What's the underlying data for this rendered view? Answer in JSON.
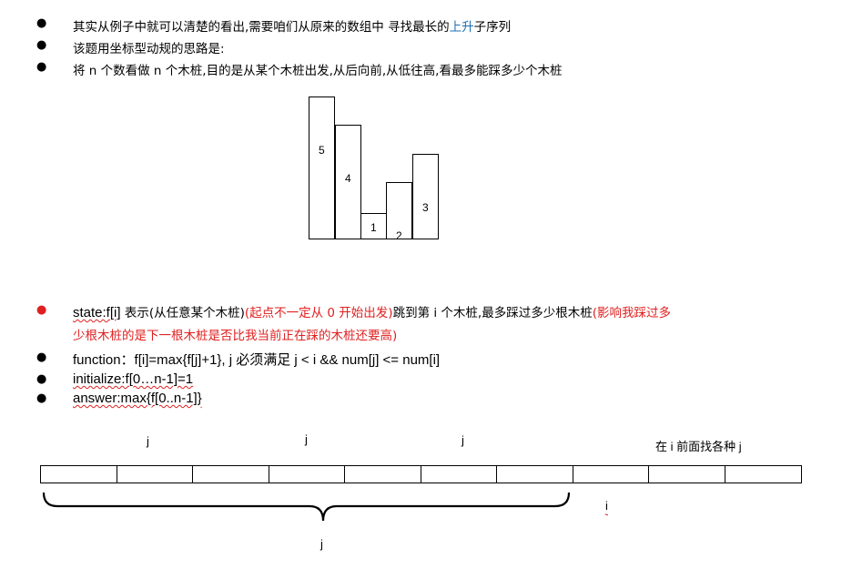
{
  "bullets_top": [
    {
      "pre": "其实从例子中就可以清楚的看出,需要咱们从原来的数组中 寻找最长的",
      "highlight": "上升",
      "post": "子序列"
    },
    {
      "text": "该题用坐标型动规的思路是:"
    },
    {
      "text": "将 n 个数看做 n 个木桩,目的是从某个木桩出发,从后向前,从低往高,看最多能踩多少个木桩"
    }
  ],
  "bullet_symbol": "●",
  "bar_chart": {
    "labels": [
      "5",
      "4",
      "1",
      "2",
      "3"
    ],
    "values": [
      5,
      4,
      1,
      2,
      3
    ]
  },
  "state": {
    "label": "state:f[i]",
    "desc1": " 表示(从任意某个木桩)",
    "red1": "(起点不一定从 0 开始出发)",
    "desc2": "跳到第 i 个木桩,最多踩过多少根木桩",
    "red2": "(影响我踩过多",
    "red3": "少根木桩的是下一根木桩是否比我当前正在踩的木桩还要高)"
  },
  "function_line": "function：f[i]=max{f[j]+1},   j 必须满足 j < i  && num[j] <= num[i]",
  "initialize_line": "initialize:f[0…n-1]=1",
  "answer_line": "answer:max{f[0..n-1]}",
  "bottom": {
    "j_labels": [
      "j",
      "j",
      "j"
    ],
    "i_hint": "在 i 前面找各种 j",
    "i_label": "i",
    "brace_label": "j",
    "cell_count": 10
  },
  "colors": {
    "blue": "#1f6fb2",
    "red": "#e02020"
  }
}
